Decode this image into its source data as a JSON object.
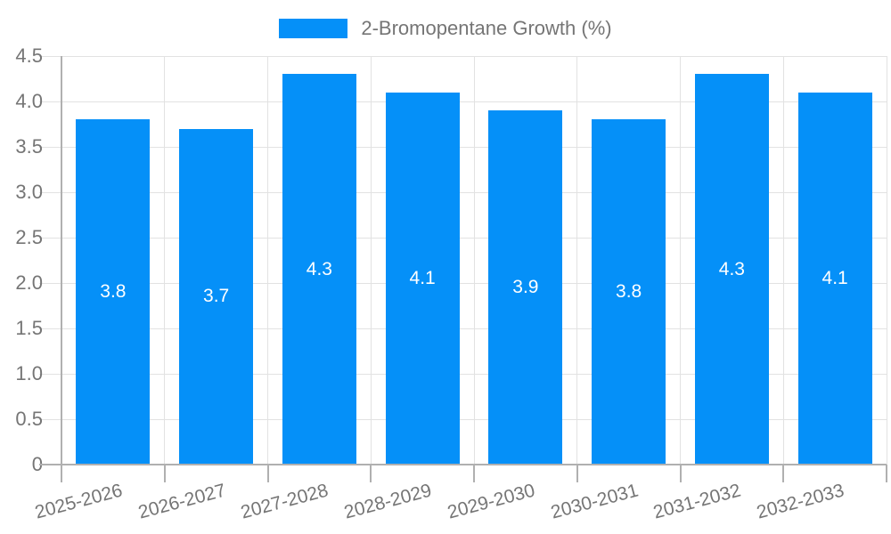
{
  "legend": {
    "label": "2-Bromopentane Growth (%)"
  },
  "chart_data": {
    "type": "bar",
    "title": "2-Bromopentane Growth (%)",
    "categories": [
      "2025-2026",
      "2026-2027",
      "2027-2028",
      "2028-2029",
      "2029-2030",
      "2030-2031",
      "2031-2032",
      "2032-2033"
    ],
    "values": [
      3.8,
      3.7,
      4.3,
      4.1,
      3.9,
      3.8,
      4.3,
      4.1
    ],
    "value_labels": [
      "3.8",
      "3.7",
      "4.3",
      "4.1",
      "3.9",
      "3.8",
      "4.3",
      "4.1"
    ],
    "y_ticks": [
      "0",
      "0.5",
      "1.0",
      "1.5",
      "2.0",
      "2.5",
      "3.0",
      "3.5",
      "4.0",
      "4.5"
    ],
    "ylim": [
      0,
      4.5
    ],
    "xlabel": "",
    "ylabel": "",
    "grid": true,
    "legend_position": "top",
    "colors": {
      "bar": "#0590f8",
      "grid_line": "#e2e2e2",
      "axis_line": "#b0b0b0",
      "tick_text": "#757575",
      "value_text": "#ffffff"
    }
  }
}
